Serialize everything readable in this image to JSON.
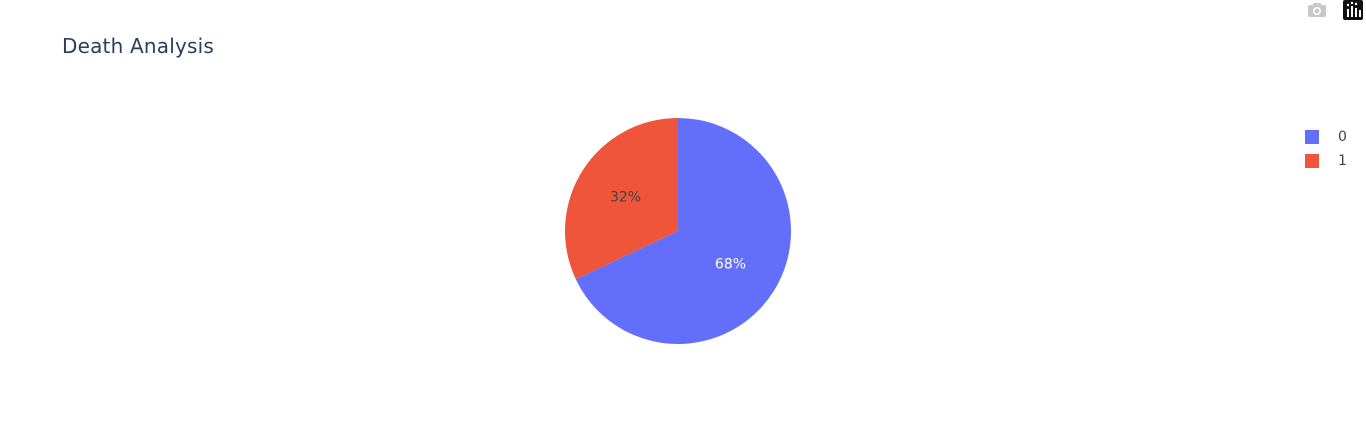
{
  "chart_data": {
    "type": "pie",
    "title": "Death Analysis",
    "labels": [
      "0",
      "1"
    ],
    "values": [
      68,
      32
    ],
    "value_labels": [
      "68%",
      "32%"
    ],
    "colors": [
      "#636efa",
      "#EF553B"
    ],
    "label_colors": [
      "#ffffff",
      "#444444"
    ],
    "start_angle_deg": 90,
    "direction": "clockwise",
    "legend": {
      "placement": "top-right",
      "entries": [
        "0",
        "1"
      ]
    }
  },
  "modebar": {
    "icons": [
      "camera-icon",
      "plotly-logo-icon"
    ]
  }
}
